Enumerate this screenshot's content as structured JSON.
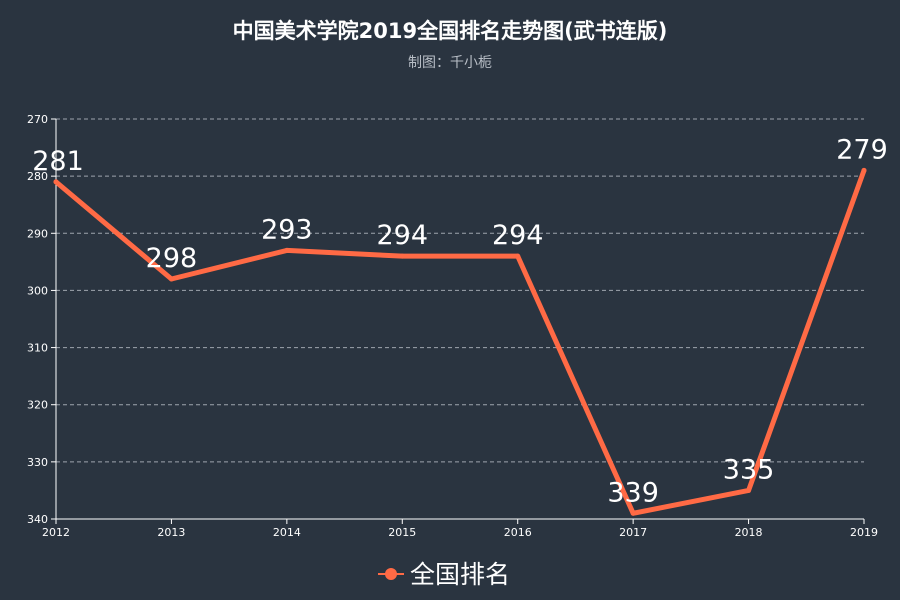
{
  "chart_data": {
    "type": "line",
    "title": "中国美术学院2019全国排名走势图(武书连版)",
    "subtitle": "制图：千小栀",
    "x": [
      "2012",
      "2013",
      "2014",
      "2015",
      "2016",
      "2017",
      "2018",
      "2019"
    ],
    "series": [
      {
        "name": "全国排名",
        "values": [
          281,
          298,
          293,
          294,
          294,
          339,
          335,
          279
        ]
      }
    ],
    "yticks": [
      270,
      280,
      290,
      300,
      310,
      320,
      330,
      340
    ],
    "ylim": [
      270,
      340
    ],
    "y_inverted": true,
    "grid": true,
    "legend": "bottom-center",
    "colors": {
      "line": "#ff6a45",
      "background": "#2a3440",
      "grid": "#c5cbd3"
    }
  }
}
